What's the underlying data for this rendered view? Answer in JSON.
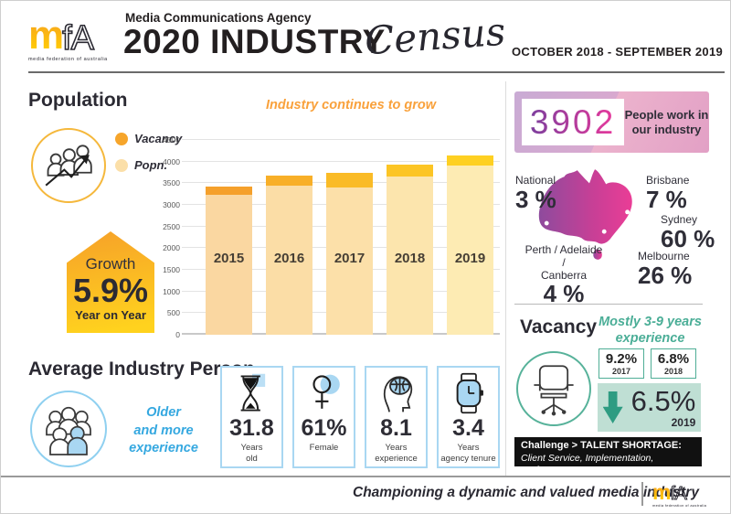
{
  "header": {
    "agency_line": "Media Communications Agency",
    "title": "2020 INDUSTRY",
    "title_script": "Census",
    "period": "OCTOBER 2018  - SEPTEMBER 2019",
    "logo": {
      "mark_m": "m",
      "mark_fa": "fA",
      "tagline": "media federation of australia"
    }
  },
  "population": {
    "heading": "Population",
    "legend": [
      {
        "label": "Vacancy",
        "color": "#F6A52B"
      },
      {
        "label": "Popn.",
        "color": "#FBDFA8"
      }
    ],
    "growth": {
      "label": "Growth",
      "value": "5.9%",
      "sublabel": "Year on Year"
    }
  },
  "chart_data": {
    "type": "bar",
    "stacked": true,
    "title": "Industry continues to grow",
    "categories": [
      "2015",
      "2016",
      "2017",
      "2018",
      "2019"
    ],
    "series": [
      {
        "name": "Popn.",
        "values": [
          3230,
          3440,
          3400,
          3660,
          3900
        ]
      },
      {
        "name": "Vacancy",
        "values": [
          200,
          230,
          340,
          270,
          250
        ]
      }
    ],
    "totals": [
      3430,
      3670,
      3740,
      3930,
      4150
    ],
    "ylim": [
      0,
      4500
    ],
    "yticks": [
      0,
      500,
      1000,
      1500,
      2000,
      2500,
      3000,
      3500,
      4000,
      4500
    ],
    "popn_colors": [
      "#FAD7A1",
      "#FBDDA6",
      "#FCE0A9",
      "#FCE5AD",
      "#FDEBB3"
    ],
    "vacancy_colors": [
      "#F5A02B",
      "#F8AF28",
      "#FABB26",
      "#FCC524",
      "#FED022"
    ],
    "grid": true,
    "legend_position": "left"
  },
  "people_box": {
    "number": "3902",
    "label": "People work in\nour industry"
  },
  "map": {
    "regions": [
      {
        "name": "National",
        "value": "3 %"
      },
      {
        "name": "Brisbane",
        "value": "7 %"
      },
      {
        "name": "Sydney",
        "value": "60 %"
      },
      {
        "name": "Perth / Adelaide /\nCanberra",
        "value": "4 %"
      },
      {
        "name": "Melbourne",
        "value": "26 %"
      }
    ]
  },
  "vacancy": {
    "heading": "Vacancy",
    "note": "Mostly 3-9 years\nexperience",
    "history": [
      {
        "value": "9.2%",
        "year": "2017"
      },
      {
        "value": "6.8%",
        "year": "2018"
      }
    ],
    "current": {
      "value": "6.5%",
      "year": "2019"
    },
    "challenge_title": "Challenge > TALENT SHORTAGE:",
    "challenge_detail": "Client Service, Implementation, Performance"
  },
  "average_person": {
    "heading": "Average Industry Person",
    "note": "Older\nand more\nexperience",
    "stats": [
      {
        "value": "31.8",
        "label": "Years\nold",
        "icon": "hourglass-icon"
      },
      {
        "value": "61%",
        "label": "Female",
        "icon": "female-icon"
      },
      {
        "value": "8.1",
        "label": "Years\nexperience",
        "icon": "head-brain-icon"
      },
      {
        "value": "3.4",
        "label": "Years\nagency tenure",
        "icon": "watch-icon"
      }
    ]
  },
  "footer": {
    "slogan": "Championing a dynamic and valued media industry",
    "logo": {
      "mark_m": "m",
      "mark_fa": "fA",
      "tagline": "media federation of australia"
    }
  },
  "colors": {
    "accent_orange": "#F6A52B",
    "accent_yellow": "#FFD021",
    "accent_blue": "#35A8E0",
    "accent_teal": "#4BAE97",
    "teal_fill": "#BFDFD4",
    "map_purple": "#8E4B9D",
    "map_magenta": "#EA3D96",
    "dark": "#2B2A33"
  }
}
